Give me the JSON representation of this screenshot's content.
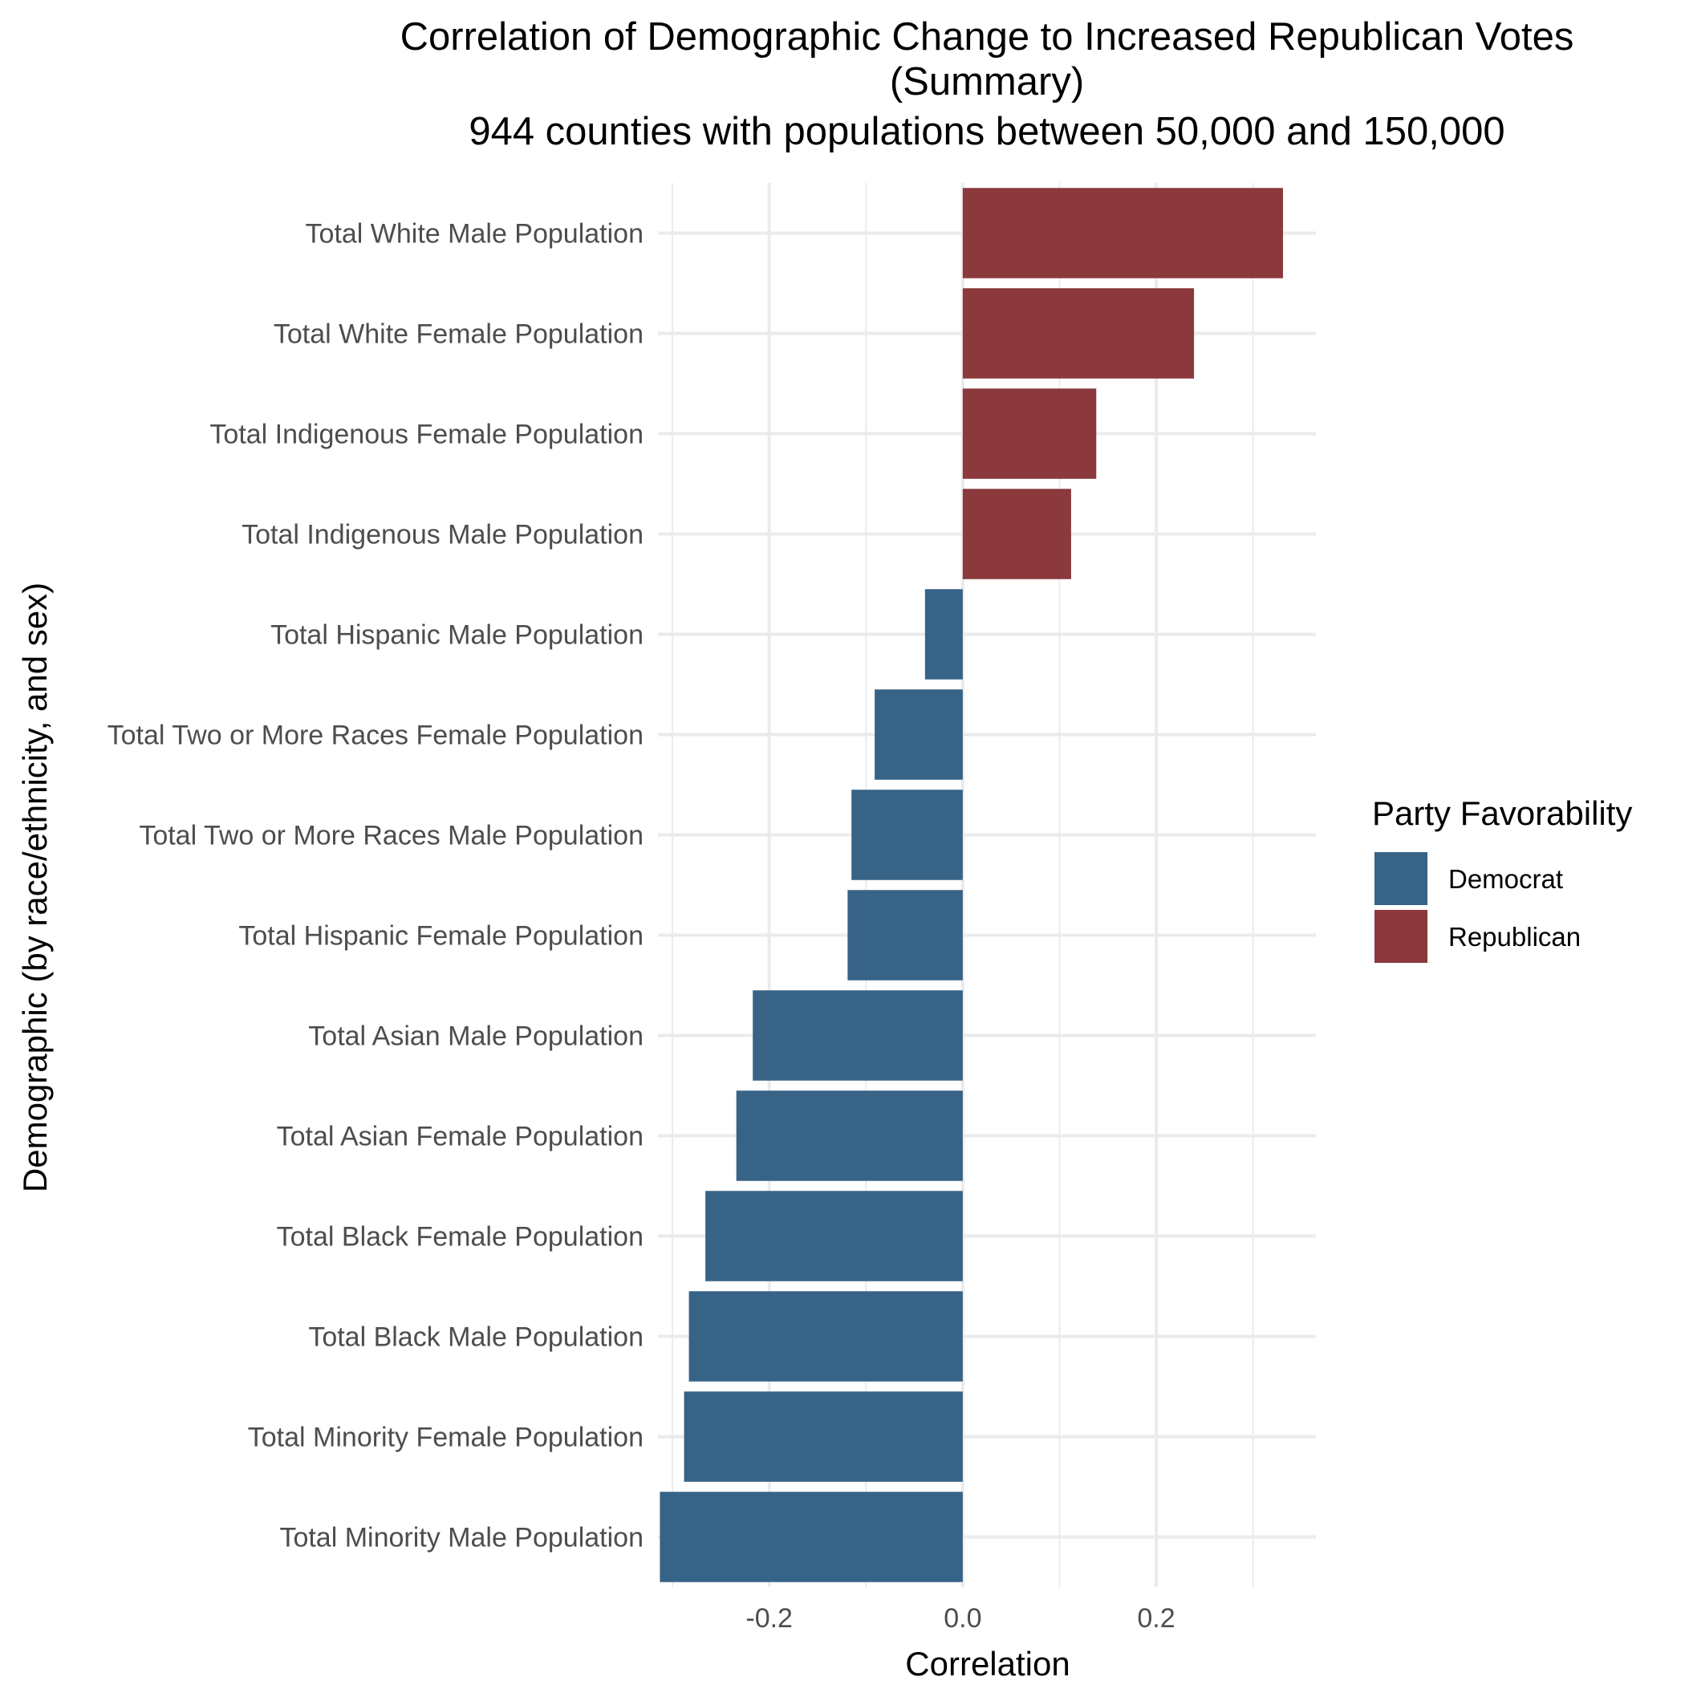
{
  "chart_data": {
    "type": "bar",
    "orientation": "horizontal",
    "title_lines": [
      "Correlation of Demographic Change to Increased Republican Votes",
      "(Summary)",
      "944 counties with populations between 50,000 and 150,000"
    ],
    "xlabel": "Correlation",
    "ylabel": "Demographic (by race/ethnicity, and sex)",
    "xlim": [
      -0.315,
      0.365
    ],
    "x_ticks": [
      -0.2,
      0.0,
      0.2
    ],
    "x_tick_labels": [
      "-0.2",
      "0.0",
      "0.2"
    ],
    "x_minor_grid": [
      -0.3,
      -0.1,
      0.1,
      0.3
    ],
    "grid": true,
    "categories": [
      "Total White Male Population",
      "Total White Female Population",
      "Total Indigenous Female Population",
      "Total Indigenous Male Population",
      "Total Hispanic Male Population",
      "Total Two or More Races Female Population",
      "Total Two or More Races Male Population",
      "Total Hispanic Female Population",
      "Total Asian Male Population",
      "Total Asian Female Population",
      "Total Black Female Population",
      "Total Black Male Population",
      "Total Minority Female Population",
      "Total Minority Male Population"
    ],
    "values": [
      0.331,
      0.239,
      0.138,
      0.112,
      -0.039,
      -0.091,
      -0.115,
      -0.119,
      -0.217,
      -0.234,
      -0.266,
      -0.283,
      -0.288,
      -0.313
    ],
    "party": [
      "Republican",
      "Republican",
      "Republican",
      "Republican",
      "Democrat",
      "Democrat",
      "Democrat",
      "Democrat",
      "Democrat",
      "Democrat",
      "Democrat",
      "Democrat",
      "Democrat",
      "Democrat"
    ],
    "legend": {
      "title": "Party Favorability",
      "placement": "right",
      "entries": [
        {
          "label": "Democrat",
          "color": "#376387"
        },
        {
          "label": "Republican",
          "color": "#8b393c"
        }
      ]
    },
    "colors": {
      "Democrat": "#376387",
      "Republican": "#8b393c",
      "grid": "#ebebeb"
    }
  }
}
